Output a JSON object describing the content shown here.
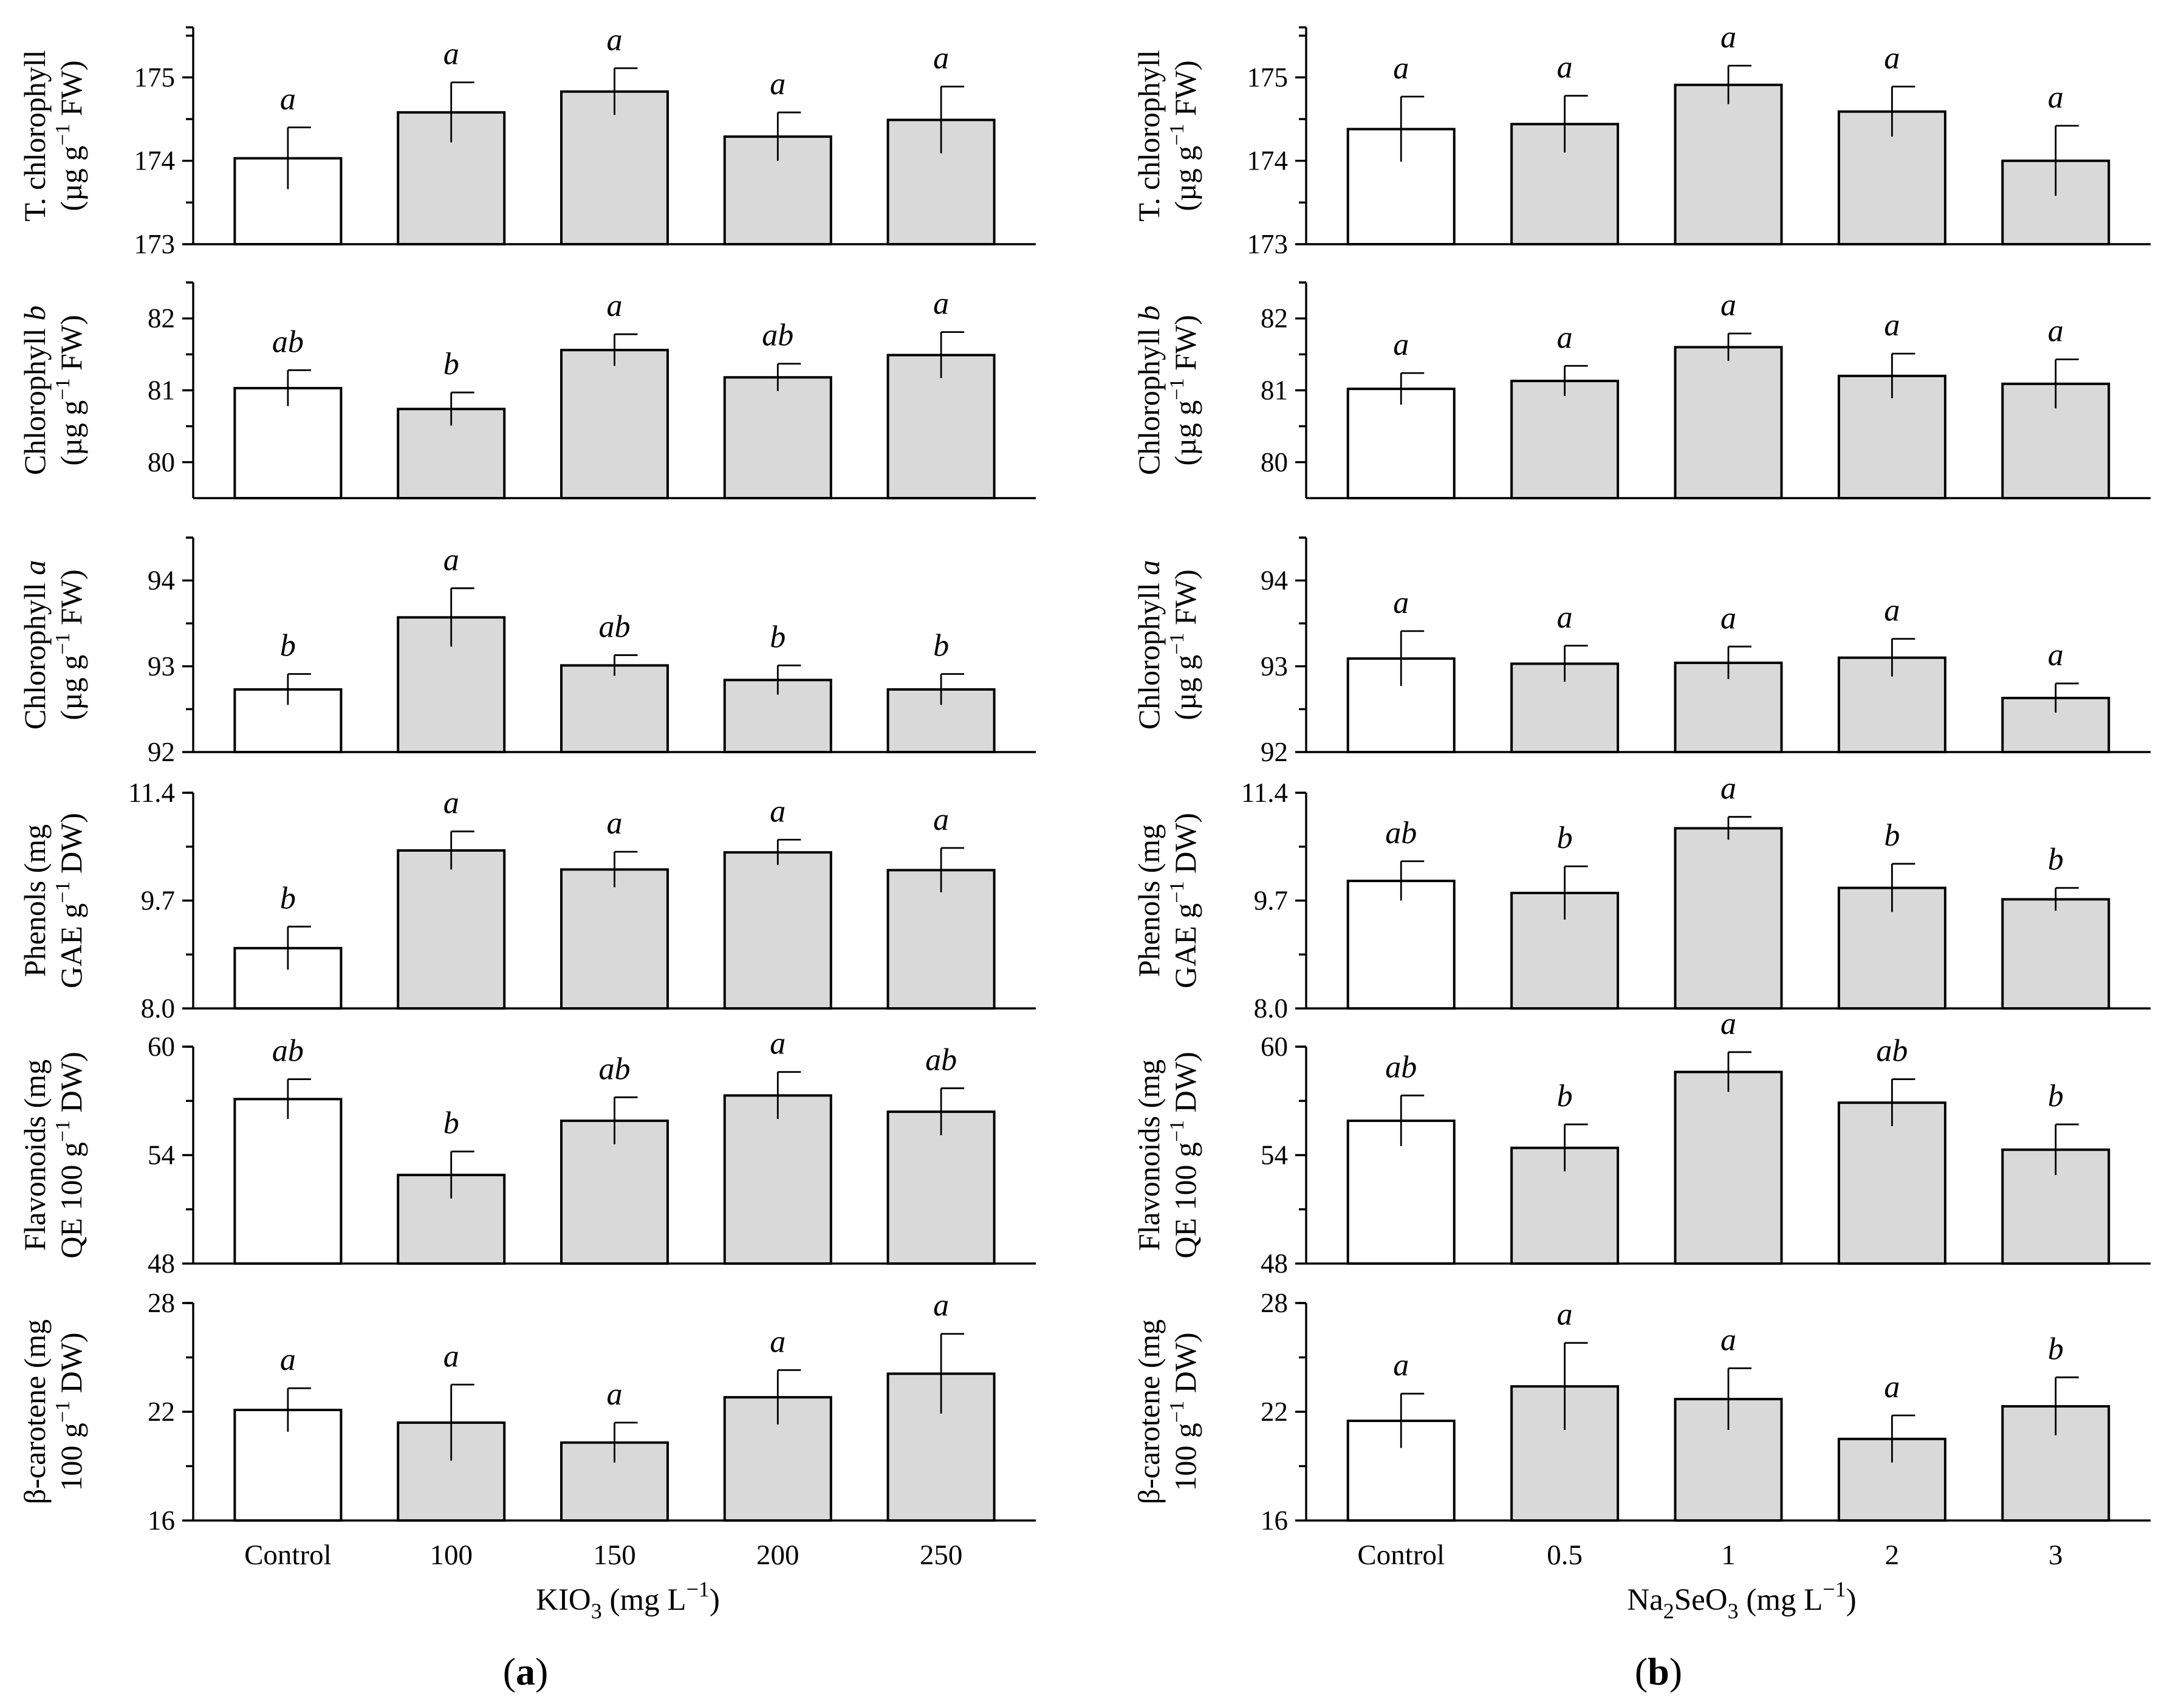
{
  "chart_data": [
    {
      "type": "bar",
      "panel": "a",
      "xlabel": "KIO3 (mg L-1)",
      "xlabel_parts": {
        "base": "KIO",
        "sub": "3",
        "open": " (mg L",
        "sup": "−1",
        "close": ")"
      },
      "categories": [
        "Control",
        "100",
        "150",
        "200",
        "250"
      ],
      "bar_colors": [
        "#ffffff",
        "#d9d9d9",
        "#d9d9d9",
        "#d9d9d9",
        "#d9d9d9"
      ],
      "subplots": [
        {
          "id": "tchl",
          "ylabel_line1": {
            "text": "T. chlorophyll"
          },
          "ylabel_line2": {
            "pre": "(µg g",
            "sup": "−1",
            "post": " FW)"
          },
          "ylim": [
            173,
            175.6
          ],
          "yticks": [
            173,
            174,
            175
          ],
          "ytick_labels": [
            "173",
            "174",
            "175"
          ],
          "values": [
            174.03,
            174.58,
            174.83,
            174.29,
            174.49
          ],
          "errors": [
            0.37,
            0.36,
            0.28,
            0.29,
            0.4
          ],
          "letters": [
            "a",
            "a",
            "a",
            "a",
            "a"
          ]
        },
        {
          "id": "chlb",
          "ylabel_line1": {
            "text": "Chlorophyll ",
            "italic": "b"
          },
          "ylabel_line2": {
            "pre": "(µg g",
            "sup": "−1",
            "post": " FW)"
          },
          "ylim": [
            79.5,
            82.5
          ],
          "yticks": [
            80,
            81,
            82
          ],
          "ytick_labels": [
            "80",
            "81",
            "82"
          ],
          "values": [
            81.03,
            80.74,
            81.56,
            81.18,
            81.49
          ],
          "errors": [
            0.25,
            0.23,
            0.22,
            0.19,
            0.32
          ],
          "letters": [
            "ab",
            "b",
            "a",
            "ab",
            "a"
          ]
        },
        {
          "id": "chla",
          "ylabel_line1": {
            "text": "Chlorophyll ",
            "italic": "a"
          },
          "ylabel_line2": {
            "pre": "(µg g",
            "sup": "−1",
            "post": " FW)"
          },
          "ylim": [
            92,
            94.5
          ],
          "yticks": [
            92,
            93,
            94
          ],
          "ytick_labels": [
            "92",
            "93",
            "94"
          ],
          "values": [
            92.73,
            93.57,
            93.01,
            92.84,
            92.73
          ],
          "errors": [
            0.18,
            0.34,
            0.12,
            0.17,
            0.18
          ],
          "letters": [
            "b",
            "a",
            "ab",
            "b",
            "b"
          ]
        },
        {
          "id": "phenols",
          "ylabel_line1": {
            "text": "Phenols (mg"
          },
          "ylabel_line2": {
            "pre": "GAE g",
            "sup": "−1",
            "post": " DW)"
          },
          "ylim": [
            8.0,
            11.4
          ],
          "yticks": [
            8.0,
            9.7,
            11.4
          ],
          "ytick_labels": [
            "8.0",
            "9.7",
            "11.4"
          ],
          "values": [
            8.95,
            10.49,
            10.19,
            10.46,
            10.18
          ],
          "errors": [
            0.34,
            0.3,
            0.28,
            0.2,
            0.35
          ],
          "letters": [
            "b",
            "a",
            "a",
            "a",
            "a"
          ]
        },
        {
          "id": "flavonoids",
          "ylabel_line1": {
            "text": "Flavonoids (mg"
          },
          "ylabel_line2": {
            "pre": "QE 100 g",
            "sup": "−1",
            "post": " DW)"
          },
          "ylim": [
            48,
            60
          ],
          "yticks": [
            48,
            54,
            60
          ],
          "ytick_labels": [
            "48",
            "54",
            "60"
          ],
          "values": [
            57.1,
            52.9,
            55.9,
            57.3,
            56.4
          ],
          "errors": [
            1.1,
            1.3,
            1.3,
            1.3,
            1.3
          ],
          "letters": [
            "ab",
            "b",
            "ab",
            "a",
            "ab"
          ]
        },
        {
          "id": "bcarotene",
          "ylabel_line1": {
            "text": "β-carotene (mg"
          },
          "ylabel_line2": {
            "pre": "100 g",
            "sup": "−1",
            "post": " DW)"
          },
          "ylim": [
            16,
            28
          ],
          "yticks": [
            16,
            22,
            28
          ],
          "ytick_labels": [
            "16",
            "22",
            "28"
          ],
          "values": [
            22.1,
            21.4,
            20.3,
            22.8,
            24.1
          ],
          "errors": [
            1.2,
            2.1,
            1.1,
            1.5,
            2.2
          ],
          "letters": [
            "a",
            "a",
            "a",
            "a",
            "a"
          ]
        }
      ]
    },
    {
      "type": "bar",
      "panel": "b",
      "xlabel": "Na2SeO3 (mg L-1)",
      "xlabel_parts": {
        "base": "Na",
        "sub": "2",
        "mid": "SeO",
        "sub2": "3",
        "open": " (mg L",
        "sup": "−1",
        "close": ")"
      },
      "categories": [
        "Control",
        "0.5",
        "1",
        "2",
        "3"
      ],
      "bar_colors": [
        "#ffffff",
        "#d9d9d9",
        "#d9d9d9",
        "#d9d9d9",
        "#d9d9d9"
      ],
      "subplots": [
        {
          "id": "tchl",
          "ylabel_line1": {
            "text": "T. chlorophyll"
          },
          "ylabel_line2": {
            "pre": "(µg g",
            "sup": "−1",
            "post": " FW)"
          },
          "ylim": [
            173,
            175.6
          ],
          "yticks": [
            173,
            174,
            175
          ],
          "ytick_labels": [
            "173",
            "174",
            "175"
          ],
          "values": [
            174.38,
            174.44,
            174.91,
            174.59,
            174.0
          ],
          "errors": [
            0.39,
            0.34,
            0.23,
            0.3,
            0.42
          ],
          "letters": [
            "a",
            "a",
            "a",
            "a",
            "a"
          ]
        },
        {
          "id": "chlb",
          "ylabel_line1": {
            "text": "Chlorophyll ",
            "italic": "b"
          },
          "ylabel_line2": {
            "pre": "(µg g",
            "sup": "−1",
            "post": " FW)"
          },
          "ylim": [
            79.5,
            82.5
          ],
          "yticks": [
            80,
            81,
            82
          ],
          "ytick_labels": [
            "80",
            "81",
            "82"
          ],
          "values": [
            81.02,
            81.13,
            81.6,
            81.2,
            81.09
          ],
          "errors": [
            0.22,
            0.21,
            0.19,
            0.31,
            0.34
          ],
          "letters": [
            "a",
            "a",
            "a",
            "a",
            "a"
          ]
        },
        {
          "id": "chla",
          "ylabel_line1": {
            "text": "Chlorophyll ",
            "italic": "a"
          },
          "ylabel_line2": {
            "pre": "(µg g",
            "sup": "−1",
            "post": " FW)"
          },
          "ylim": [
            92,
            94.5
          ],
          "yticks": [
            92,
            93,
            94
          ],
          "ytick_labels": [
            "92",
            "93",
            "94"
          ],
          "values": [
            93.09,
            93.03,
            93.04,
            93.1,
            92.63
          ],
          "errors": [
            0.32,
            0.21,
            0.19,
            0.22,
            0.17
          ],
          "letters": [
            "a",
            "a",
            "a",
            "a",
            "a"
          ]
        },
        {
          "id": "phenols",
          "ylabel_line1": {
            "text": "Phenols (mg"
          },
          "ylabel_line2": {
            "pre": "GAE g",
            "sup": "−1",
            "post": " DW)"
          },
          "ylim": [
            8.0,
            11.4
          ],
          "yticks": [
            8.0,
            9.7,
            11.4
          ],
          "ytick_labels": [
            "8.0",
            "9.7",
            "11.4"
          ],
          "values": [
            10.01,
            9.82,
            10.84,
            9.9,
            9.72
          ],
          "errors": [
            0.31,
            0.42,
            0.18,
            0.38,
            0.18
          ],
          "letters": [
            "ab",
            "b",
            "a",
            "b",
            "b"
          ]
        },
        {
          "id": "flavonoids",
          "ylabel_line1": {
            "text": "Flavonoids (mg"
          },
          "ylabel_line2": {
            "pre": "QE 100 g",
            "sup": "−1",
            "post": " DW)"
          },
          "ylim": [
            48,
            60
          ],
          "yticks": [
            48,
            54,
            60
          ],
          "ytick_labels": [
            "48",
            "54",
            "60"
          ],
          "values": [
            55.9,
            54.4,
            58.6,
            56.9,
            54.3
          ],
          "errors": [
            1.4,
            1.3,
            1.1,
            1.3,
            1.4
          ],
          "letters": [
            "ab",
            "b",
            "a",
            "ab",
            "b"
          ]
        },
        {
          "id": "bcarotene",
          "ylabel_line1": {
            "text": "β-carotene (mg"
          },
          "ylabel_line2": {
            "pre": "100 g",
            "sup": "−1",
            "post": " DW)"
          },
          "ylim": [
            16,
            28
          ],
          "yticks": [
            16,
            22,
            28
          ],
          "ytick_labels": [
            "16",
            "22",
            "28"
          ],
          "values": [
            21.5,
            23.4,
            22.7,
            20.5,
            22.3
          ],
          "errors": [
            1.5,
            2.4,
            1.7,
            1.3,
            1.6
          ],
          "letters": [
            "a",
            "a",
            "a",
            "a",
            "b"
          ]
        }
      ]
    }
  ]
}
